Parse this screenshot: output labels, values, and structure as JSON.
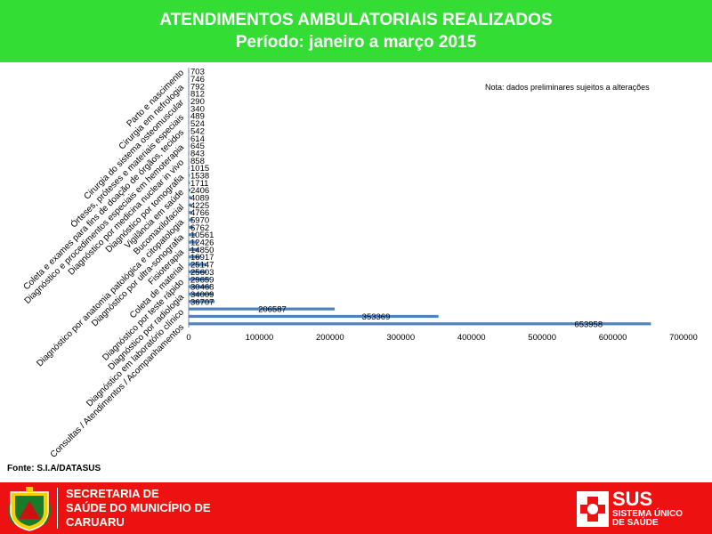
{
  "header": {
    "title": "ATENDIMENTOS AMBULATORIAIS REALIZADOS",
    "subtitle": "Período: janeiro a março 2015"
  },
  "note": "Nota: dados preliminares sujeitos a alterações",
  "source": "Fonte: S.I.A/DATASUS",
  "footer": {
    "org_line1": "SECRETARIA DE",
    "org_line2": "SAÚDE DO MUNICÍPIO DE",
    "org_line3": "CARUARU",
    "sus_word": "SUS",
    "sus_line1": "SISTEMA ÚNICO",
    "sus_line2": "DE SAÚDE"
  },
  "colors": {
    "header_bg": "#33dd33",
    "footer_bg": "#ee1111",
    "bar": "#4f81bd"
  },
  "chart_data": {
    "type": "bar",
    "orientation": "horizontal",
    "title": "ATENDIMENTOS AMBULATORIAIS REALIZADOS",
    "subtitle": "Período: janeiro a março 2015",
    "xlim": [
      0,
      700000
    ],
    "xticks": [
      0,
      100000,
      200000,
      300000,
      400000,
      500000,
      600000,
      700000
    ],
    "grid": false,
    "legend": "none",
    "category_labels_shown": [
      "Parto e nascimento",
      "Cirurgia em nefrologia",
      "Cirurgia do sistema osteomuscular",
      "Órteses, próteses e materiais especiais",
      "Coleta e exames para fins de doação de órgãos, tecidos",
      "Diagnóstico e procedimentos especiais em hemoterapia",
      "Diagnóstico por medicina nuclear in vivo",
      "Diagnóstico por tomografia",
      "Vigilância em saúde",
      "Bucomaxilofacial",
      "Diagnóstico por anatomia patológica e citopatologia",
      "Diagnóstico por ultra-sonografia",
      "Fisioterapia",
      "Coleta de material",
      "Diagnóstico por teste rápido",
      "Diagnóstico por radiologia",
      "Diagnóstico em laboratório clínico",
      "Consultas / Atendimentos / Acompanhamentos"
    ],
    "value_labels": [
      "703",
      "746",
      "792",
      "812",
      "290",
      "340",
      "489",
      "524",
      "542",
      "614",
      "645",
      "843",
      "858",
      "1015",
      "1538",
      "1711",
      "2406",
      "4089",
      "4225",
      "4766",
      "5970",
      "6762",
      "10561",
      "12426",
      "14850",
      "16917",
      "25147",
      "25603",
      "29659",
      "30468",
      "34009",
      "36707",
      "206587",
      "353369",
      "653958"
    ],
    "values": [
      703,
      746,
      792,
      812,
      290,
      340,
      489,
      524,
      542,
      614,
      645,
      843,
      858,
      1015,
      1538,
      1711,
      2406,
      4089,
      4225,
      4766,
      5970,
      6762,
      10561,
      12426,
      14850,
      16917,
      25147,
      25603,
      29659,
      30468,
      34009,
      36707,
      206587,
      353369,
      653958
    ]
  }
}
